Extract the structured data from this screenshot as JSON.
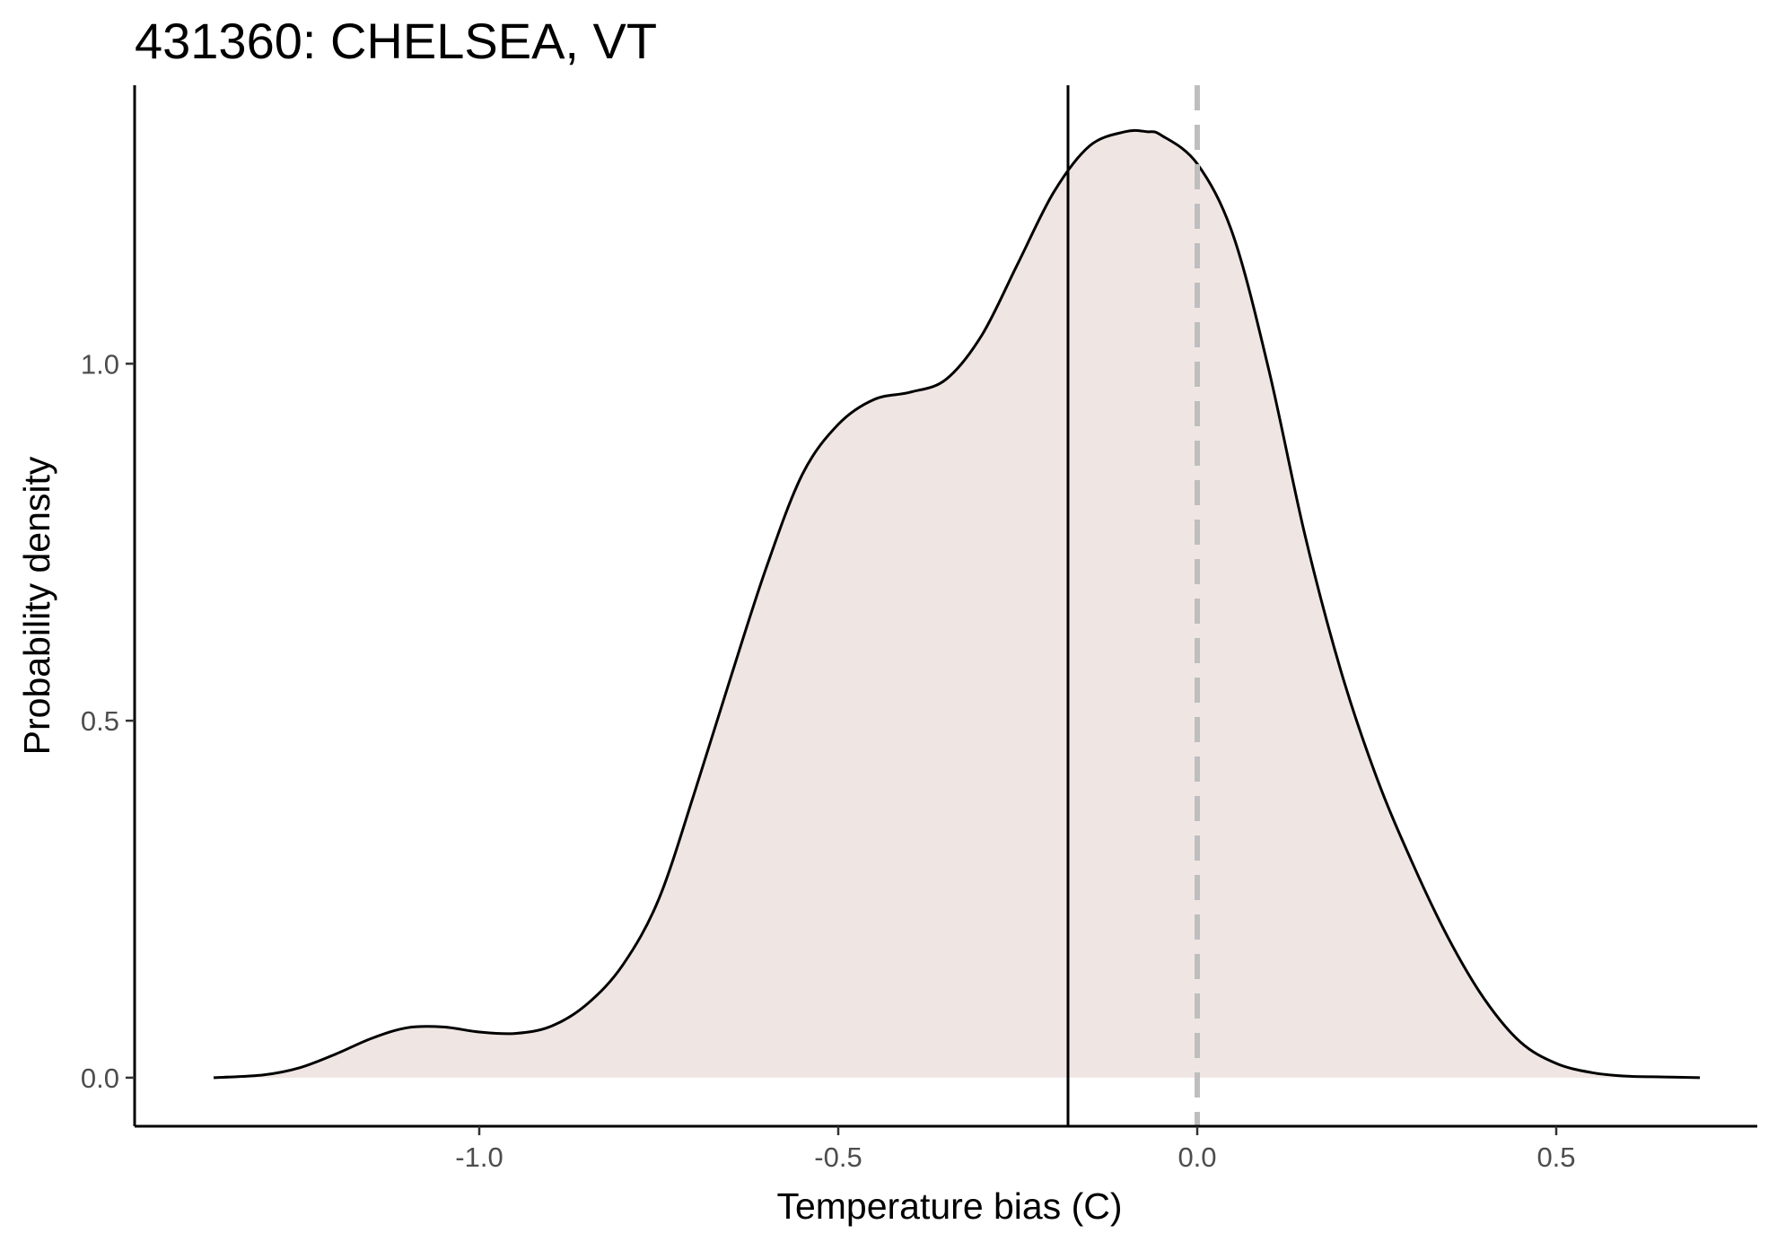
{
  "chart_data": {
    "type": "area",
    "title": "431360: CHELSEA, VT",
    "xlabel": "Temperature bias (C)",
    "ylabel": "Probability density",
    "xlim": [
      -1.48,
      0.78
    ],
    "ylim": [
      -0.068,
      1.39
    ],
    "x_ticks": [
      -1.0,
      -0.5,
      0.0,
      0.5
    ],
    "x_tick_labels": [
      "-1.0",
      "-0.5",
      "0.0",
      "0.5"
    ],
    "y_ticks": [
      0.0,
      0.5,
      1.0
    ],
    "y_tick_labels": [
      "0.0",
      "0.5",
      "1.0"
    ],
    "grid": false,
    "series": [
      {
        "x": [
          -1.37,
          -1.3,
          -1.25,
          -1.2,
          -1.15,
          -1.1,
          -1.05,
          -1.0,
          -0.95,
          -0.9,
          -0.85,
          -0.8,
          -0.75,
          -0.7,
          -0.65,
          -0.6,
          -0.55,
          -0.5,
          -0.45,
          -0.4,
          -0.35,
          -0.3,
          -0.25,
          -0.2,
          -0.15,
          -0.1,
          -0.07,
          -0.05,
          0.0,
          0.05,
          0.1,
          0.15,
          0.2,
          0.25,
          0.3,
          0.35,
          0.4,
          0.45,
          0.5,
          0.55,
          0.6,
          0.65,
          0.7
        ],
        "y": [
          0.0,
          0.004,
          0.014,
          0.033,
          0.055,
          0.07,
          0.071,
          0.064,
          0.062,
          0.072,
          0.103,
          0.158,
          0.25,
          0.4,
          0.56,
          0.715,
          0.845,
          0.915,
          0.95,
          0.96,
          0.978,
          1.04,
          1.14,
          1.24,
          1.305,
          1.325,
          1.325,
          1.32,
          1.28,
          1.18,
          0.99,
          0.76,
          0.57,
          0.42,
          0.3,
          0.195,
          0.11,
          0.05,
          0.02,
          0.007,
          0.002,
          0.001,
          0.0
        ],
        "fill": "#efe6e3",
        "line_color": "#000000"
      }
    ],
    "reference_lines": [
      {
        "x": -0.18,
        "style": "solid",
        "color": "#000000"
      },
      {
        "x": 0.0,
        "style": "dashed",
        "color": "#bebebe"
      }
    ]
  }
}
